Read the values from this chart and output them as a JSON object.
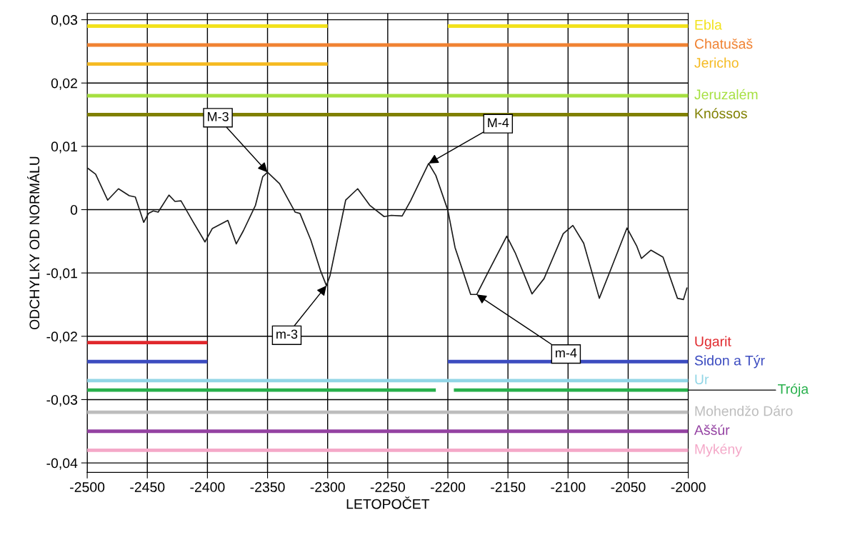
{
  "chart_data": {
    "type": "line",
    "xlabel": "LETOPOČET",
    "ylabel": "ODCHYLKY OD NORMÁLU",
    "xlim": [
      -2500,
      -2000
    ],
    "ylim": [
      -0.0415,
      0.031
    ],
    "xticks": [
      -2500,
      -2450,
      -2400,
      -2350,
      -2300,
      -2250,
      -2200,
      -2150,
      -2100,
      -2050,
      -2000
    ],
    "yticks": [
      {
        "value": -0.04,
        "label": "-0,04"
      },
      {
        "value": -0.03,
        "label": "-0,03"
      },
      {
        "value": -0.02,
        "label": "-0,02"
      },
      {
        "value": -0.01,
        "label": "-0,01"
      },
      {
        "value": 0,
        "label": "0"
      },
      {
        "value": 0.01,
        "label": "0,01"
      },
      {
        "value": 0.02,
        "label": "0,02"
      },
      {
        "value": 0.03,
        "label": "0,03"
      }
    ],
    "grid": true,
    "legend": false,
    "marker": "none",
    "line_style": "solid",
    "series": [
      {
        "color": "#1a1a1a",
        "x": [
          -2500,
          -2493,
          -2483,
          -2474,
          -2465,
          -2460,
          -2453,
          -2449,
          -2445,
          -2441,
          -2432,
          -2427,
          -2422,
          -2412,
          -2402,
          -2396,
          -2383,
          -2376,
          -2370,
          -2360,
          -2354,
          -2350,
          -2340,
          -2327,
          -2323,
          -2314,
          -2306,
          -2301,
          -2298,
          -2285,
          -2275,
          -2265,
          -2253,
          -2247,
          -2238,
          -2231,
          -2216,
          -2210,
          -2200,
          -2194,
          -2181,
          -2176,
          -2166,
          -2151,
          -2144,
          -2130,
          -2120,
          -2104,
          -2096,
          -2087,
          -2074,
          -2065,
          -2051,
          -2043,
          -2039,
          -2031,
          -2021,
          -2009,
          -2004,
          -2001
        ],
        "values": [
          0.0066,
          0.0056,
          0.0015,
          0.0033,
          0.0022,
          0.002,
          -0.002,
          -0.0006,
          -0.0002,
          -0.0004,
          0.0023,
          0.0013,
          0.0014,
          -0.0019,
          -0.0051,
          -0.003,
          -0.0017,
          -0.0054,
          -0.0033,
          0.0007,
          0.0052,
          0.0059,
          0.0041,
          -0.0004,
          -0.0006,
          -0.0048,
          -0.0096,
          -0.012,
          -0.0104,
          0.0015,
          0.0033,
          0.0007,
          -0.0011,
          -0.0009,
          -0.001,
          0.0014,
          0.0073,
          0.0054,
          -0.0001,
          -0.006,
          -0.0134,
          -0.0134,
          -0.0097,
          -0.0042,
          -0.0068,
          -0.0133,
          -0.0109,
          -0.0038,
          -0.0025,
          -0.0053,
          -0.014,
          -0.0097,
          -0.0029,
          -0.0057,
          -0.0077,
          -0.0064,
          -0.0075,
          -0.014,
          -0.0142,
          -0.0123
        ]
      },
      {
        "name": "Ebla",
        "color": "#f2e21c",
        "x": [
          -2500,
          -2300,
          -2250,
          -2200,
          -2000
        ],
        "values": [
          0.029,
          0.029,
          null,
          0.029,
          0.029
        ]
      },
      {
        "name": "Chatušaš",
        "color": "#f08232",
        "x": [
          -2500,
          -2000
        ],
        "values": [
          0.026,
          0.026
        ]
      },
      {
        "name": "Jericho",
        "color": "#f5ba22",
        "x": [
          -2500,
          -2300
        ],
        "values": [
          0.023,
          0.023
        ]
      },
      {
        "name": "Jeruzalém",
        "color": "#a6e040",
        "x": [
          -2500,
          -2000
        ],
        "values": [
          0.018,
          0.018
        ]
      },
      {
        "name": "Knóssos",
        "color": "#808000",
        "x": [
          -2500,
          -2000
        ],
        "values": [
          0.015,
          0.015
        ]
      },
      {
        "name": "Ugarit",
        "color": "#e0282d",
        "x": [
          -2500,
          -2400
        ],
        "values": [
          -0.021,
          -0.021
        ]
      },
      {
        "name": "Sidon a Týr",
        "color": "#3c4cc0",
        "x": [
          -2500,
          -2400,
          -2300,
          -2200,
          -2000
        ],
        "values": [
          -0.024,
          -0.024,
          null,
          -0.024,
          -0.024
        ]
      },
      {
        "name": "Ur",
        "color": "#92d6e6",
        "x": [
          -2500,
          -2000
        ],
        "values": [
          -0.027,
          -0.027
        ]
      },
      {
        "name": "Trója",
        "color": "#28b04c",
        "x": [
          -2500,
          -2210,
          -2200,
          -2195,
          -2000
        ],
        "values": [
          -0.0285,
          -0.0285,
          null,
          -0.0285,
          -0.0285
        ]
      },
      {
        "name": "Mohendžo Dáro",
        "color": "#bdbdbd",
        "x": [
          -2500,
          -2000
        ],
        "values": [
          -0.032,
          -0.032
        ]
      },
      {
        "name": "Aššúr",
        "color": "#9442a2",
        "x": [
          -2500,
          -2000
        ],
        "values": [
          -0.035,
          -0.035
        ]
      },
      {
        "name": "Mykény",
        "color": "#f4a8c8",
        "x": [
          -2500,
          -2000
        ],
        "values": [
          -0.038,
          -0.038
        ]
      }
    ],
    "annotations": [
      {
        "text": "M-3",
        "x": -2350,
        "y": 0.0059
      },
      {
        "text": "m-3",
        "x": -2301,
        "y": -0.012
      },
      {
        "text": "M-4",
        "x": -2216,
        "y": 0.0073
      },
      {
        "text": "m-4",
        "x": -2176,
        "y": -0.0134
      }
    ]
  }
}
